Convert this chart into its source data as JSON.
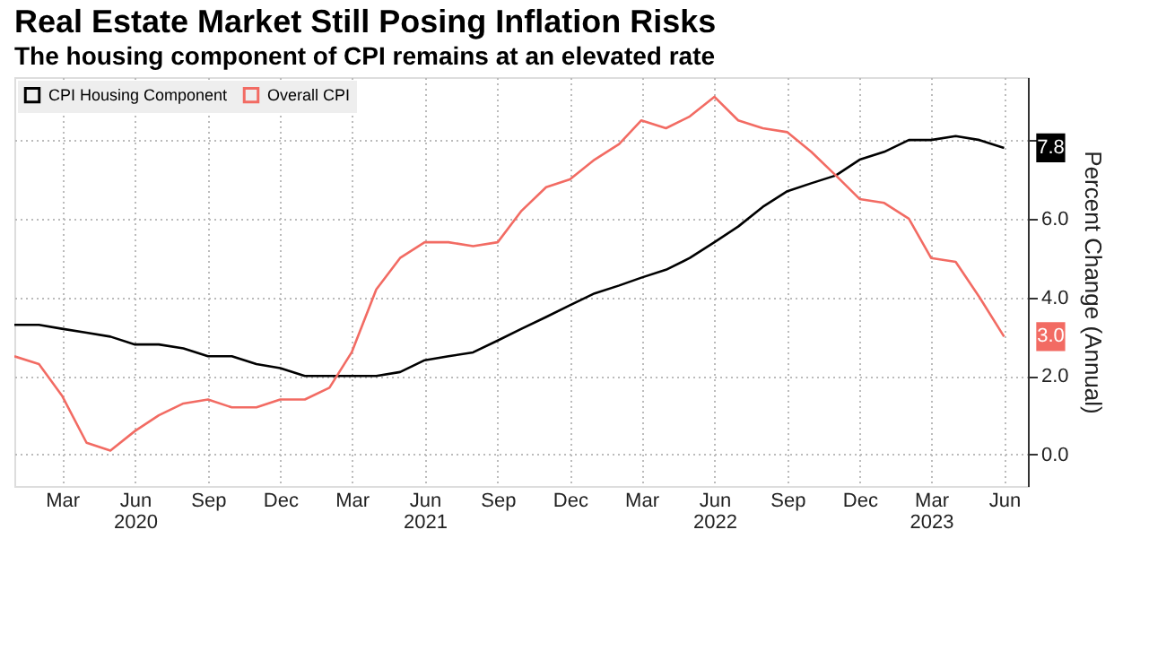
{
  "chart_data": {
    "type": "line",
    "title": "Real Estate Market Still Posing Inflation Risks",
    "subtitle": "The housing component of CPI remains at an elevated rate",
    "ylabel": "Percent Change (Annual)",
    "x": [
      "2020-01",
      "2020-02",
      "2020-03",
      "2020-04",
      "2020-05",
      "2020-06",
      "2020-07",
      "2020-08",
      "2020-09",
      "2020-10",
      "2020-11",
      "2020-12",
      "2021-01",
      "2021-02",
      "2021-03",
      "2021-04",
      "2021-05",
      "2021-06",
      "2021-07",
      "2021-08",
      "2021-09",
      "2021-10",
      "2021-11",
      "2021-12",
      "2022-01",
      "2022-02",
      "2022-03",
      "2022-04",
      "2022-05",
      "2022-06",
      "2022-07",
      "2022-08",
      "2022-09",
      "2022-10",
      "2022-11",
      "2022-12",
      "2023-01",
      "2023-02",
      "2023-03",
      "2023-04",
      "2023-05",
      "2023-06"
    ],
    "series": [
      {
        "name": "CPI Housing Component",
        "color": "#000000",
        "values": [
          3.3,
          3.3,
          3.2,
          3.1,
          3.0,
          2.8,
          2.8,
          2.7,
          2.5,
          2.5,
          2.3,
          2.2,
          2.0,
          2.0,
          2.0,
          2.0,
          2.1,
          2.4,
          2.5,
          2.6,
          2.9,
          3.2,
          3.5,
          3.8,
          4.1,
          4.3,
          4.5,
          4.7,
          5.0,
          5.4,
          5.8,
          6.3,
          6.7,
          6.9,
          7.1,
          7.5,
          7.7,
          8.0,
          8.0,
          8.1,
          8.0,
          7.8
        ]
      },
      {
        "name": "Overall CPI",
        "color": "#f26b63",
        "values": [
          2.5,
          2.3,
          1.5,
          0.3,
          0.1,
          0.6,
          1.0,
          1.3,
          1.4,
          1.2,
          1.2,
          1.4,
          1.4,
          1.7,
          2.6,
          4.2,
          5.0,
          5.4,
          5.4,
          5.3,
          5.4,
          6.2,
          6.8,
          7.0,
          7.5,
          7.9,
          8.5,
          8.3,
          8.6,
          9.1,
          8.5,
          8.3,
          8.2,
          7.7,
          7.1,
          6.5,
          6.4,
          6.0,
          5.0,
          4.9,
          4.0,
          3.0
        ]
      }
    ],
    "xlim": [
      "2020-01",
      "2023-07"
    ],
    "xticks": [
      {
        "value": "2020-03",
        "label": "Mar"
      },
      {
        "value": "2020-06",
        "label": "Jun 2020"
      },
      {
        "value": "2020-09",
        "label": "Sep"
      },
      {
        "value": "2020-12",
        "label": "Dec"
      },
      {
        "value": "2021-03",
        "label": "Mar"
      },
      {
        "value": "2021-06",
        "label": "Jun 2021"
      },
      {
        "value": "2021-09",
        "label": "Sep"
      },
      {
        "value": "2021-12",
        "label": "Dec"
      },
      {
        "value": "2022-03",
        "label": "Mar"
      },
      {
        "value": "2022-06",
        "label": "Jun 2022"
      },
      {
        "value": "2022-09",
        "label": "Sep"
      },
      {
        "value": "2022-12",
        "label": "Dec"
      },
      {
        "value": "2023-03",
        "label": "Mar 2023"
      },
      {
        "value": "2023-06",
        "label": "Jun"
      }
    ],
    "ylim": [
      -0.8,
      9.6
    ],
    "yticks": [
      {
        "value": 0,
        "label": "0.0"
      },
      {
        "value": 2,
        "label": "2.0"
      },
      {
        "value": 4,
        "label": "4.0"
      },
      {
        "value": 6,
        "label": "6.0"
      },
      {
        "value": 8,
        "label": null
      }
    ],
    "annotations": [
      {
        "text": "7.8",
        "x": "2023-06",
        "y": 7.8
      },
      {
        "text": "3.0",
        "x": "2023-06",
        "y": 3.0
      }
    ],
    "grid": true,
    "legend": "top left",
    "line_style": "solid",
    "marker": "none"
  }
}
